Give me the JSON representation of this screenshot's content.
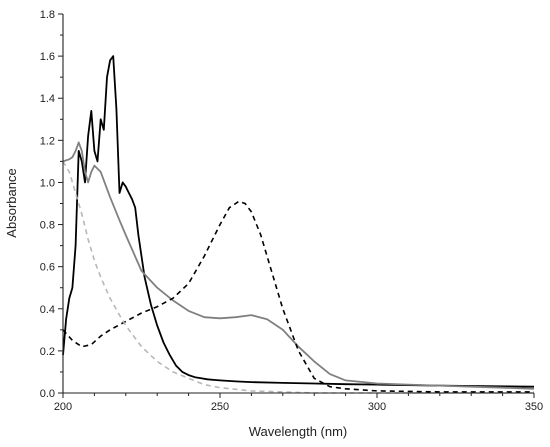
{
  "chart_data": {
    "type": "line",
    "title": "",
    "xlabel": "Wavelength (nm)",
    "ylabel": "Absorbance",
    "xlim": [
      200,
      350
    ],
    "ylim": [
      0,
      1.8
    ],
    "xticks": [
      200,
      250,
      300,
      350
    ],
    "yticks": [
      0.0,
      0.2,
      0.4,
      0.6,
      0.8,
      1.0,
      1.2,
      1.4,
      1.6,
      1.8
    ],
    "yticklabels": [
      "0.0",
      "0.2",
      "0.4",
      "0.6",
      "0.8",
      "1.0",
      "1.2",
      "1.4",
      "1.6",
      "1.8"
    ],
    "grid": false,
    "legend": "none",
    "series": [
      {
        "color": "#000000",
        "style": "solid",
        "x": [
          200,
          201,
          202,
          203,
          204,
          205,
          206,
          207,
          208,
          209,
          210,
          211,
          212,
          213,
          214,
          215,
          216,
          217,
          218,
          219,
          220,
          221,
          222,
          223,
          224,
          226,
          228,
          230,
          232,
          234,
          236,
          238,
          240,
          242,
          244,
          246,
          248,
          250,
          255,
          260,
          270,
          280,
          290,
          300,
          320,
          350
        ],
        "y": [
          0.18,
          0.35,
          0.45,
          0.5,
          0.7,
          1.15,
          1.1,
          1.0,
          1.22,
          1.34,
          1.15,
          1.1,
          1.3,
          1.25,
          1.5,
          1.58,
          1.6,
          1.35,
          0.95,
          1.0,
          0.98,
          0.95,
          0.92,
          0.88,
          0.75,
          0.55,
          0.42,
          0.32,
          0.24,
          0.18,
          0.13,
          0.1,
          0.085,
          0.075,
          0.07,
          0.065,
          0.062,
          0.06,
          0.055,
          0.052,
          0.048,
          0.045,
          0.042,
          0.04,
          0.035,
          0.03
        ]
      },
      {
        "color": "#808080",
        "style": "solid",
        "x": [
          200,
          202,
          203,
          204,
          205,
          206,
          207,
          208,
          209,
          210,
          212,
          215,
          218,
          220,
          225,
          230,
          235,
          240,
          245,
          250,
          255,
          260,
          265,
          270,
          275,
          280,
          285,
          290,
          300,
          310,
          320,
          330,
          340,
          350
        ],
        "y": [
          1.1,
          1.11,
          1.12,
          1.15,
          1.19,
          1.15,
          1.05,
          1.0,
          1.05,
          1.08,
          1.05,
          0.93,
          0.82,
          0.75,
          0.58,
          0.5,
          0.44,
          0.39,
          0.36,
          0.355,
          0.36,
          0.37,
          0.35,
          0.3,
          0.22,
          0.15,
          0.09,
          0.06,
          0.045,
          0.04,
          0.035,
          0.03,
          0.025,
          0.02
        ]
      },
      {
        "color": "#000000",
        "style": "dashed",
        "x": [
          200,
          203,
          206,
          209,
          212,
          215,
          220,
          225,
          230,
          235,
          240,
          245,
          250,
          253,
          256,
          258,
          260,
          263,
          266,
          270,
          275,
          280,
          285,
          290,
          300,
          320,
          350
        ],
        "y": [
          0.3,
          0.25,
          0.22,
          0.23,
          0.27,
          0.3,
          0.34,
          0.38,
          0.41,
          0.45,
          0.52,
          0.65,
          0.8,
          0.88,
          0.91,
          0.9,
          0.86,
          0.75,
          0.6,
          0.4,
          0.2,
          0.07,
          0.03,
          0.02,
          0.01,
          0.005,
          0.005
        ]
      },
      {
        "color": "#b8b8b8",
        "style": "dashed",
        "x": [
          200,
          202,
          204,
          206,
          208,
          210,
          212,
          215,
          218,
          220,
          225,
          230,
          235,
          240,
          245,
          250,
          260,
          270,
          280,
          300,
          350
        ],
        "y": [
          1.1,
          1.05,
          0.95,
          0.85,
          0.73,
          0.63,
          0.55,
          0.45,
          0.37,
          0.32,
          0.22,
          0.15,
          0.1,
          0.07,
          0.04,
          0.025,
          0.01,
          0.005,
          0.0,
          0.0,
          0.0
        ]
      }
    ]
  }
}
